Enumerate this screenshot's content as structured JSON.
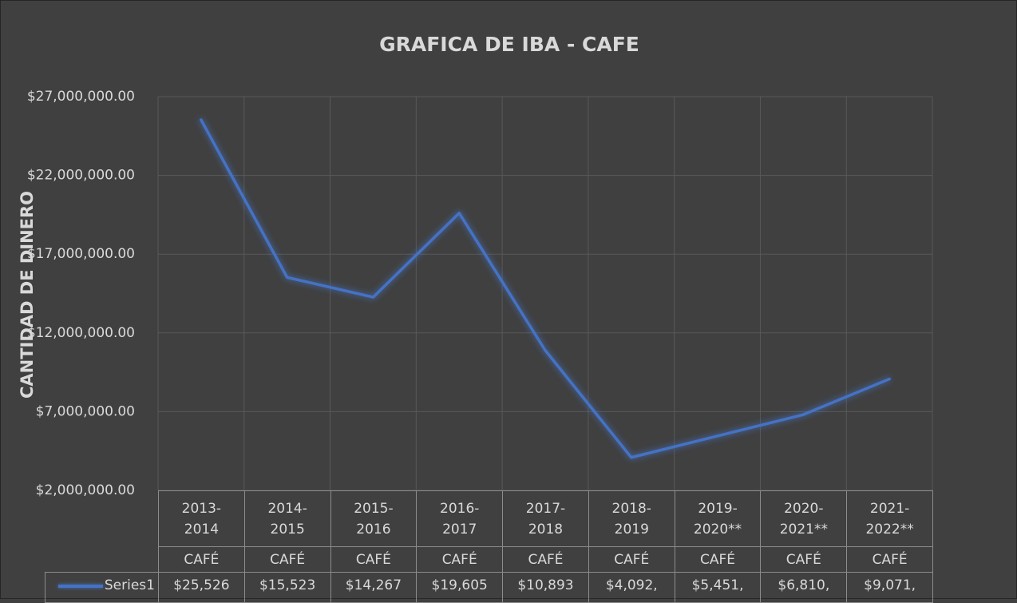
{
  "chart_data": {
    "type": "line",
    "title": "GRAFICA DE IBA - CAFE",
    "y_label": "CANTIDAD DE DINERO",
    "categories": [
      "2013-2014",
      "2014-2015",
      "2015-2016",
      "2016-2017",
      "2017-2018",
      "2018-2019",
      "2019-2020**",
      "2020-2021**",
      "2021-2022**"
    ],
    "subcategories": [
      "CAFÉ",
      "CAFÉ",
      "CAFÉ",
      "CAFÉ",
      "CAFÉ",
      "CAFÉ",
      "CAFÉ",
      "CAFÉ",
      "CAFÉ"
    ],
    "series": [
      {
        "name": "Series1",
        "color": "#4472c4",
        "values": [
          25526000,
          15523000,
          14267000,
          19605000,
          10893000,
          4092000,
          5451000,
          6810000,
          9071000
        ],
        "value_labels": [
          "$25,526",
          "$15,523",
          "$14,267",
          "$19,605",
          "$10,893",
          "$4,092,",
          "$5,451,",
          "$6,810,",
          "$9,071,"
        ]
      }
    ],
    "ylim": [
      2000000,
      27000000
    ],
    "yticks": [
      {
        "value": 2000000,
        "label": "$2,000,000.00"
      },
      {
        "value": 7000000,
        "label": "$7,000,000.00"
      },
      {
        "value": 12000000,
        "label": "$12,000,000.00"
      },
      {
        "value": 17000000,
        "label": "$17,000,000.00"
      },
      {
        "value": 22000000,
        "label": "$22,000,000.00"
      },
      {
        "value": 27000000,
        "label": "$27,000,000.00"
      }
    ],
    "grid": true,
    "data_table": true
  }
}
